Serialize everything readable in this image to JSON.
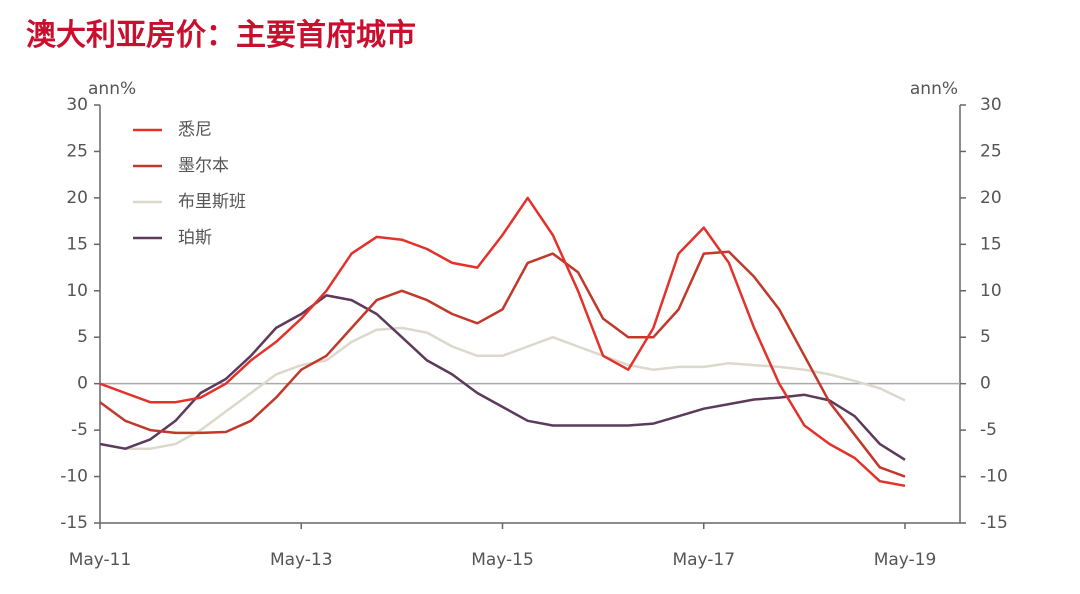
{
  "chart_data": {
    "type": "line",
    "title": "澳大利亚房价：主要首府城市",
    "y_label": "ann%",
    "y2_label": "ann%",
    "categories": [
      "May-11",
      null,
      null,
      null,
      null,
      null,
      null,
      null,
      "May-13",
      null,
      null,
      null,
      null,
      null,
      null,
      null,
      "May-15",
      null,
      null,
      null,
      null,
      null,
      null,
      null,
      "May-17",
      null,
      null,
      null,
      null,
      null,
      null,
      null,
      "May-19"
    ],
    "series": [
      {
        "name": "悉尼",
        "color": "#e2322b",
        "values": [
          0,
          -1,
          -2,
          -2,
          -1.5,
          0,
          2.5,
          4.5,
          7,
          10,
          14,
          15.8,
          15.5,
          14.5,
          13,
          12.5,
          16,
          20,
          16,
          10,
          3,
          1.5,
          6,
          14,
          16.8,
          13,
          6,
          0,
          -4.5,
          -6.5,
          -8,
          -10.5,
          -11
        ]
      },
      {
        "name": "墨尔本",
        "color": "#c0392b",
        "values": [
          -2,
          -4,
          -5,
          -5.3,
          -5.3,
          -5.2,
          -4,
          -1.5,
          1.5,
          3,
          6,
          9,
          10,
          9,
          7.5,
          6.5,
          8,
          13,
          14,
          12,
          7,
          5,
          5,
          8,
          14,
          14.2,
          11.5,
          8,
          3,
          -2,
          -5.5,
          -9,
          -10
        ]
      },
      {
        "name": "布里斯班",
        "color": "#ddd8cc",
        "values": [
          -6.5,
          -7,
          -7,
          -6.5,
          -5,
          -3,
          -1,
          1,
          2,
          2.5,
          4.5,
          5.8,
          6,
          5.5,
          4,
          3,
          3,
          4,
          5,
          4,
          3,
          2,
          1.5,
          1.8,
          1.8,
          2.2,
          2,
          1.8,
          1.5,
          1,
          0.3,
          -0.5,
          -1.8
        ]
      },
      {
        "name": "珀斯",
        "color": "#5b3a5c",
        "values": [
          -6.5,
          -7,
          -6,
          -4,
          -1,
          0.5,
          3,
          6,
          7.5,
          9.5,
          9,
          7.5,
          5,
          2.5,
          1,
          -1,
          -2.5,
          -4,
          -4.5,
          -4.5,
          -4.5,
          -4.5,
          -4.3,
          -3.5,
          -2.7,
          -2.2,
          -1.7,
          -1.5,
          -1.2,
          -1.8,
          -3.5,
          -6.5,
          -8.2
        ]
      }
    ],
    "ylim": [
      -15,
      30
    ],
    "yticks": [
      -15,
      -10,
      -5,
      0,
      5,
      10,
      15,
      20,
      25,
      30
    ],
    "y2lim": [
      -15,
      30
    ],
    "y2ticks": [
      -15,
      -10,
      -5,
      0,
      5,
      10,
      15,
      20,
      25,
      30
    ],
    "grid": false,
    "legend": "top-left"
  }
}
